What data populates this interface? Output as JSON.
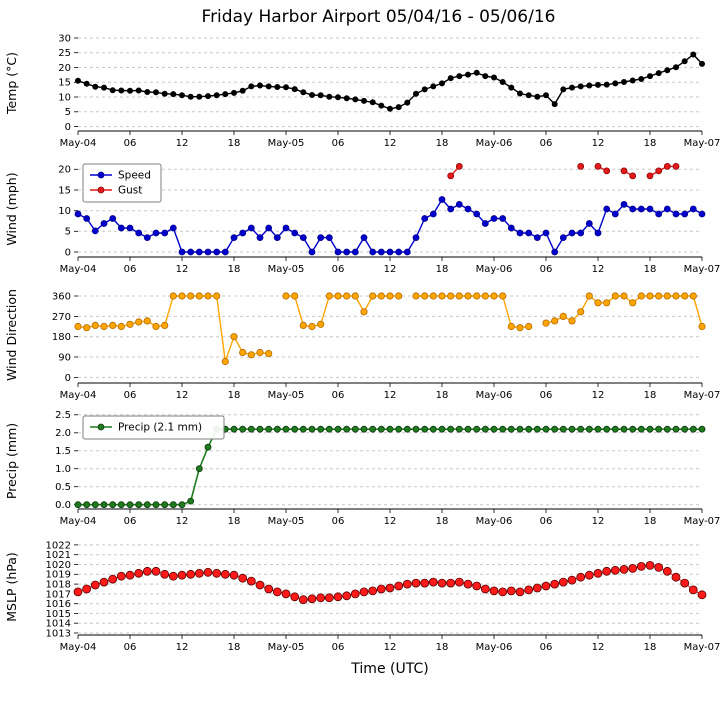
{
  "title": "Friday Harbor Airport 05/04/16 - 05/06/16",
  "x_axis": {
    "label": "Time (UTC)",
    "min": 0,
    "max": 72,
    "tick_hours": [
      0,
      6,
      12,
      18,
      24,
      30,
      36,
      42,
      48,
      54,
      60,
      66,
      72
    ],
    "tick_labels": [
      "May-04",
      "06",
      "12",
      "18",
      "May-05",
      "06",
      "12",
      "18",
      "May-06",
      "06",
      "12",
      "18",
      "May-07"
    ]
  },
  "chart_data": [
    {
      "type": "line",
      "name": "temperature",
      "ylabel": "Temp (°C)",
      "ylim": [
        -1.5,
        31
      ],
      "yticks": [
        0,
        5,
        10,
        15,
        20,
        25,
        30
      ],
      "ytick_labels": [
        "0",
        "5",
        "10",
        "15",
        "20",
        "25",
        "30"
      ],
      "legend": false,
      "series": [
        {
          "name": "Temp",
          "color": "#000000",
          "edge": "#000000",
          "marker_r": 2.6,
          "line_width": 1.4,
          "values": [
            15.5,
            14.5,
            13.5,
            13.2,
            12.3,
            12.2,
            12.1,
            12.2,
            11.7,
            11.6,
            11.1,
            11.0,
            10.6,
            10.1,
            10.1,
            10.3,
            10.6,
            11.0,
            11.4,
            12.1,
            13.6,
            13.9,
            13.6,
            13.4,
            13.3,
            12.7,
            11.6,
            10.7,
            10.6,
            10.1,
            9.9,
            9.6,
            9.2,
            8.7,
            8.2,
            7.1,
            6.0,
            6.6,
            8.1,
            11.1,
            12.6,
            13.6,
            14.6,
            16.4,
            17.1,
            17.6,
            18.2,
            17.1,
            16.6,
            15.1,
            13.2,
            11.2,
            10.6,
            10.1,
            10.6,
            7.6,
            12.6,
            13.2,
            13.6,
            13.9,
            14.1,
            14.2,
            14.6,
            15.1,
            15.6,
            16.1,
            17.1,
            18.1,
            19.1,
            20.1,
            22.1,
            24.4,
            21.2
          ]
        }
      ]
    },
    {
      "type": "line",
      "name": "wind",
      "ylabel": "Wind (mph)",
      "ylim": [
        -1.2,
        22
      ],
      "yticks": [
        0,
        5,
        10,
        15,
        20
      ],
      "ytick_labels": [
        "0",
        "5",
        "10",
        "15",
        "20"
      ],
      "legend": true,
      "series": [
        {
          "name": "Speed",
          "color": "#0000cd",
          "edge": "#00008b",
          "marker_r": 3,
          "line_width": 1.4,
          "values": [
            9.2,
            8.1,
            5.1,
            6.9,
            8.1,
            5.8,
            5.8,
            4.6,
            3.5,
            4.6,
            4.6,
            5.8,
            0,
            0,
            0,
            0,
            0,
            0,
            3.5,
            4.6,
            5.8,
            3.5,
            5.8,
            3.5,
            5.8,
            4.6,
            3.5,
            0,
            3.5,
            3.5,
            0,
            0,
            0,
            3.5,
            0,
            0,
            0,
            0,
            0,
            3.5,
            8.1,
            9.2,
            12.7,
            10.4,
            11.5,
            10.4,
            9.2,
            6.9,
            8.1,
            8.1,
            5.8,
            4.6,
            4.6,
            3.5,
            4.6,
            0,
            3.5,
            4.6,
            4.6,
            6.9,
            4.6,
            10.4,
            9.2,
            11.5,
            10.4,
            10.4,
            10.4,
            9.2,
            10.4,
            9.2,
            9.2,
            10.4,
            9.2
          ]
        },
        {
          "name": "Gust",
          "color": "#e41a1c",
          "edge": "#8b0000",
          "marker_r": 3,
          "line_width": 1.4,
          "values": [
            null,
            null,
            null,
            null,
            null,
            null,
            null,
            null,
            null,
            null,
            null,
            null,
            null,
            null,
            null,
            null,
            null,
            null,
            null,
            null,
            null,
            null,
            null,
            null,
            null,
            null,
            null,
            null,
            null,
            null,
            null,
            null,
            null,
            null,
            null,
            null,
            null,
            null,
            null,
            null,
            null,
            null,
            null,
            18.4,
            20.7,
            null,
            null,
            null,
            null,
            null,
            null,
            null,
            null,
            null,
            null,
            null,
            null,
            null,
            20.7,
            null,
            20.7,
            19.6,
            null,
            19.6,
            18.4,
            null,
            18.4,
            19.6,
            20.7,
            20.7,
            null,
            null,
            null
          ]
        }
      ]
    },
    {
      "type": "line",
      "name": "wind-direction",
      "ylabel": "Wind Direction",
      "ylim": [
        -25,
        400
      ],
      "yticks": [
        0,
        90,
        180,
        270,
        360
      ],
      "ytick_labels": [
        "0",
        "90",
        "180",
        "270",
        "360"
      ],
      "legend": false,
      "series": [
        {
          "name": "Direction",
          "color": "#ffa500",
          "edge": "#b36b00",
          "marker_r": 3.2,
          "line_width": 1.4,
          "values": [
            225,
            220,
            230,
            225,
            230,
            225,
            235,
            245,
            250,
            225,
            230,
            360,
            360,
            360,
            360,
            360,
            360,
            70,
            180,
            110,
            100,
            110,
            105,
            null,
            360,
            360,
            230,
            225,
            235,
            360,
            360,
            360,
            360,
            290,
            360,
            360,
            360,
            360,
            null,
            360,
            360,
            360,
            360,
            360,
            360,
            360,
            360,
            360,
            360,
            360,
            225,
            220,
            225,
            null,
            240,
            250,
            270,
            250,
            290,
            360,
            330,
            330,
            360,
            360,
            330,
            360,
            360,
            360,
            360,
            360,
            360,
            360,
            225
          ]
        }
      ]
    },
    {
      "type": "line",
      "name": "precip",
      "ylabel": "Precip (mm)",
      "ylim": [
        -0.12,
        2.55
      ],
      "yticks": [
        0,
        0.5,
        1,
        1.5,
        2,
        2.5
      ],
      "ytick_labels": [
        "0.0",
        "0.5",
        "1.0",
        "1.5",
        "2.0",
        "2.5"
      ],
      "legend": true,
      "series": [
        {
          "name": "Precip (2.1 mm)",
          "color": "#1f7a1f",
          "edge": "#0d3d0d",
          "marker_r": 3,
          "line_width": 1.6,
          "values": [
            0,
            0,
            0,
            0,
            0,
            0,
            0,
            0,
            0,
            0,
            0,
            0,
            0,
            0.1,
            1.0,
            1.6,
            2.1,
            2.1,
            2.1,
            2.1,
            2.1,
            2.1,
            2.1,
            2.1,
            2.1,
            2.1,
            2.1,
            2.1,
            2.1,
            2.1,
            2.1,
            2.1,
            2.1,
            2.1,
            2.1,
            2.1,
            2.1,
            2.1,
            2.1,
            2.1,
            2.1,
            2.1,
            2.1,
            2.1,
            2.1,
            2.1,
            2.1,
            2.1,
            2.1,
            2.1,
            2.1,
            2.1,
            2.1,
            2.1,
            2.1,
            2.1,
            2.1,
            2.1,
            2.1,
            2.1,
            2.1,
            2.1,
            2.1,
            2.1,
            2.1,
            2.1,
            2.1,
            2.1,
            2.1,
            2.1,
            2.1,
            2.1,
            2.1
          ]
        }
      ]
    },
    {
      "type": "line",
      "name": "mslp",
      "ylabel": "MSLP (hPa)",
      "ylim": [
        1012.8,
        1022.6
      ],
      "yticks": [
        1013,
        1014,
        1015,
        1016,
        1017,
        1018,
        1019,
        1020,
        1021,
        1022
      ],
      "ytick_labels": [
        "1013",
        "1014",
        "1015",
        "1016",
        "1017",
        "1018",
        "1019",
        "1020",
        "1021",
        "1022"
      ],
      "legend": false,
      "series": [
        {
          "name": "MSLP",
          "color": "#ff1a1a",
          "edge": "#550000",
          "marker_r": 4,
          "line_width": 1,
          "values": [
            1017.2,
            1017.5,
            1017.9,
            1018.2,
            1018.5,
            1018.8,
            1018.9,
            1019.1,
            1019.3,
            1019.3,
            1019.0,
            1018.8,
            1018.9,
            1019.0,
            1019.1,
            1019.2,
            1019.1,
            1019.0,
            1018.9,
            1018.6,
            1018.3,
            1017.9,
            1017.5,
            1017.2,
            1017.0,
            1016.7,
            1016.4,
            1016.5,
            1016.6,
            1016.6,
            1016.7,
            1016.8,
            1017.0,
            1017.2,
            1017.3,
            1017.5,
            1017.6,
            1017.8,
            1018.0,
            1018.1,
            1018.1,
            1018.2,
            1018.1,
            1018.1,
            1018.2,
            1018.0,
            1017.8,
            1017.5,
            1017.3,
            1017.2,
            1017.3,
            1017.2,
            1017.4,
            1017.6,
            1017.8,
            1018.0,
            1018.2,
            1018.4,
            1018.7,
            1018.9,
            1019.1,
            1019.3,
            1019.4,
            1019.5,
            1019.6,
            1019.8,
            1019.9,
            1019.7,
            1019.3,
            1018.7,
            1018.1,
            1017.4,
            1016.9
          ]
        }
      ]
    }
  ]
}
